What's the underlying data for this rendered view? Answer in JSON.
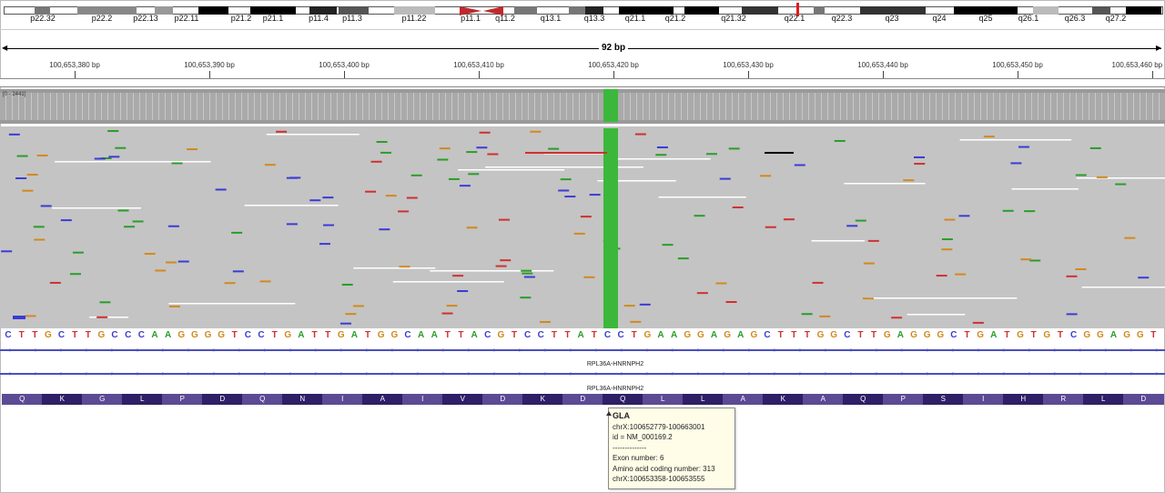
{
  "ideogram": {
    "bands": [
      "p22.32",
      "p22.2",
      "p22.13",
      "p22.11",
      "p21.2",
      "p21.1",
      "p11.4",
      "p11.3",
      "p11.22",
      "p11.1",
      "q11.2",
      "q13.1",
      "q13.3",
      "q21.1",
      "q21.2",
      "q21.32",
      "q22.1",
      "q22.3",
      "q23",
      "q24",
      "q25",
      "q26.1",
      "q26.3",
      "q27.2"
    ]
  },
  "ruler": {
    "span": "92 bp",
    "ticks": [
      "100,653,380 bp",
      "100,653,390 bp",
      "100,653,400 bp",
      "100,653,410 bp",
      "100,653,420 bp",
      "100,653,430 bp",
      "100,653,440 bp",
      "100,653,450 bp",
      "100,653,460 bp"
    ]
  },
  "coverage": {
    "range": "[0 - 2441]"
  },
  "sequence": "CTTGCTTGCCCAAGGGGTCCTGATTGATGGCAATTACGTCCTTATCCTGAAGGAGAGCTTTGGCTTGAGGGCTGATGTGTCGGAGGT",
  "genes": {
    "label_1": "RPL36A-HNRNPH2",
    "label_2": "RPL36A-HNRNPH2"
  },
  "amino_acids": [
    "Q",
    "K",
    "G",
    "L",
    "P",
    "D",
    "Q",
    "N",
    "I",
    "A",
    "I",
    "V",
    "D",
    "K",
    "D",
    "Q",
    "L",
    "L",
    "A",
    "K",
    "A",
    "Q",
    "P",
    "S",
    "I",
    "H",
    "R",
    "L",
    "D"
  ],
  "tooltip": {
    "title": "GLA",
    "lines": [
      "chrX:100652779-100663001",
      "id = NM_000169.2",
      "--------------",
      "Exon number: 6",
      "Amino acid coding number: 313",
      "chrX:100653358-100653555"
    ]
  },
  "colors": {
    "A": "#2a9d2a",
    "C": "#3b3bd6",
    "G": "#d08a1e",
    "T": "#d03030",
    "highlight": "#3bb83b"
  }
}
